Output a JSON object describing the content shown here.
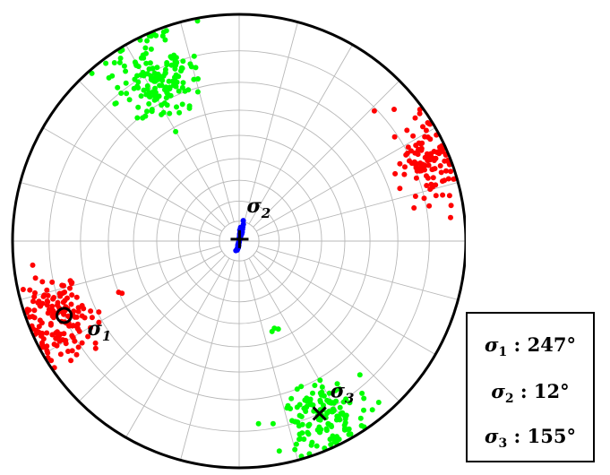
{
  "chart_data": {
    "type": "scatter",
    "projection": "polar stereonet",
    "grid": true,
    "clusters": [
      {
        "name": "",
        "color": "#ff0000",
        "azimuth_deg": 247,
        "plunge_deg": 8,
        "spread_deg": 5,
        "n": 130
      },
      {
        "name": "",
        "color": "#ff0000",
        "azimuth_deg": 67,
        "plunge_deg": 5,
        "spread_deg": 5,
        "n": 130
      },
      {
        "name": "",
        "color": "#00ff00",
        "azimuth_deg": 333,
        "plunge_deg": 12,
        "spread_deg": 6,
        "n": 150
      },
      {
        "name": "",
        "color": "#00ff00",
        "azimuth_deg": 155,
        "plunge_deg": 8,
        "spread_deg": 5,
        "n": 150
      },
      {
        "name": "",
        "color": "#0000ff",
        "azimuth_deg": 12,
        "plunge_deg": 88,
        "spread_deg": 3,
        "n": 150
      }
    ],
    "outliers": [
      {
        "color": "#ff0000",
        "azimuth_deg": 247,
        "plunge_deg": 30
      },
      {
        "color": "#ff0000",
        "azimuth_deg": 246,
        "plunge_deg": 31
      },
      {
        "color": "#00ff00",
        "azimuth_deg": 158,
        "plunge_deg": 45
      },
      {
        "color": "#00ff00",
        "azimuth_deg": 160,
        "plunge_deg": 44
      },
      {
        "color": "#00ff00",
        "azimuth_deg": 156,
        "plunge_deg": 44
      }
    ],
    "markers": [
      {
        "id": "sigma1",
        "shape": "circle",
        "azimuth_deg": 247,
        "plunge_deg": 10,
        "label": "σ",
        "sub": "1"
      },
      {
        "id": "sigma2",
        "shape": "plus",
        "azimuth_deg": 12,
        "plunge_deg": 89,
        "label": "σ",
        "sub": "2"
      },
      {
        "id": "sigma3",
        "shape": "cross",
        "azimuth_deg": 155,
        "plunge_deg": 10,
        "label": "σ",
        "sub": "3"
      }
    ]
  },
  "legend": {
    "rows": [
      {
        "symbol": "σ",
        "sub": "1",
        "text": " :  247°"
      },
      {
        "symbol": "σ",
        "sub": "2",
        "text": " : 12°"
      },
      {
        "symbol": "σ",
        "sub": "3",
        "text": " : 155°"
      }
    ]
  }
}
